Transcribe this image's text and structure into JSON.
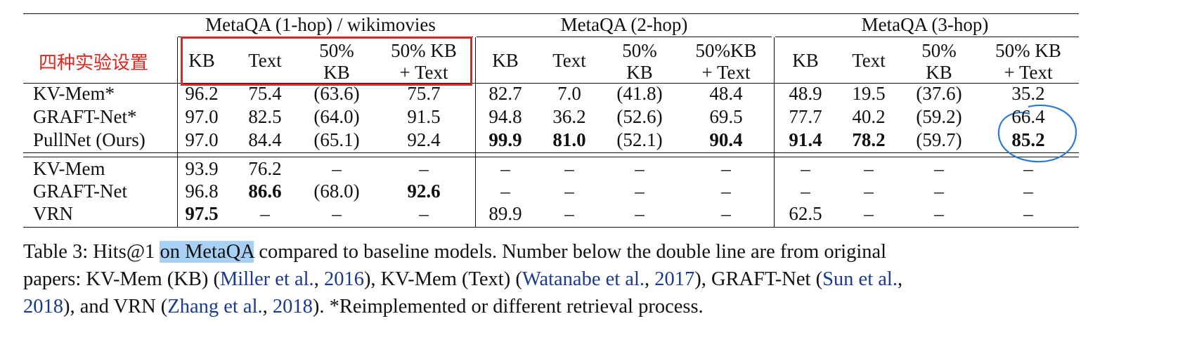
{
  "annotation_note": "四种实验设置",
  "groups": [
    "MetaQA (1-hop) / wikimovies",
    "MetaQA (2-hop)",
    "MetaQA (3-hop)"
  ],
  "columns": [
    [
      "KB",
      "Text",
      "50% KB",
      "50% KB + Text"
    ],
    [
      "KB",
      "Text",
      "50% KB",
      "50%KB + Text"
    ],
    [
      "KB",
      "Text",
      "50% KB",
      "50% KB + Text"
    ]
  ],
  "rows_top": [
    {
      "label": "KV-Mem*",
      "cells": [
        "96.2",
        "75.4",
        "(63.6)",
        "75.7",
        "82.7",
        "7.0",
        "(41.8)",
        "48.4",
        "48.9",
        "19.5",
        "(37.6)",
        "35.2"
      ],
      "bold": []
    },
    {
      "label": "GRAFT-Net*",
      "cells": [
        "97.0",
        "82.5",
        "(64.0)",
        "91.5",
        "94.8",
        "36.2",
        "(52.6)",
        "69.5",
        "77.7",
        "40.2",
        "(59.2)",
        "66.4"
      ],
      "bold": []
    },
    {
      "label": "PullNet (Ours)",
      "cells": [
        "97.0",
        "84.4",
        "(65.1)",
        "92.4",
        "99.9",
        "81.0",
        "(52.1)",
        "90.4",
        "91.4",
        "78.2",
        "(59.7)",
        "85.2"
      ],
      "bold": [
        4,
        5,
        7,
        8,
        9,
        11
      ]
    }
  ],
  "rows_bottom": [
    {
      "label": "KV-Mem",
      "cells": [
        "93.9",
        "76.2",
        "–",
        "–",
        "–",
        "–",
        "–",
        "–",
        "–",
        "–",
        "–",
        "–"
      ],
      "bold": []
    },
    {
      "label": "GRAFT-Net",
      "cells": [
        "96.8",
        "86.6",
        "(68.0)",
        "92.6",
        "–",
        "–",
        "–",
        "–",
        "–",
        "–",
        "–",
        "–"
      ],
      "bold": [
        1,
        3
      ]
    },
    {
      "label": "VRN",
      "cells": [
        "97.5",
        "–",
        "–",
        "–",
        "89.9",
        "–",
        "–",
        "–",
        "62.5",
        "–",
        "–",
        "–"
      ],
      "bold": [
        0
      ]
    }
  ],
  "caption": {
    "l1_a": "Table 3:  Hits@1 ",
    "l1_hl": "on MetaQA",
    "l1_b": " compared to baseline models.  Number below the double line are from original",
    "l2_a": "papers: KV-Mem (KB) (",
    "l2_c1": "Miller et al.",
    "l2_s1": ", ",
    "l2_y1": "2016",
    "l2_b": "), KV-Mem (Text) (",
    "l2_c2": "Watanabe et al.",
    "l2_s2": ", ",
    "l2_y2": "2017",
    "l2_c": "), GRAFT-Net (",
    "l2_c3": "Sun et al.",
    "l2_s3": ",",
    "l3_y3": "2018",
    "l3_a": "), and VRN (",
    "l3_c4": "Zhang et al.",
    "l3_s4": ", ",
    "l3_y4": "2018",
    "l3_b": ").  *Reimplemented or different retrieval process."
  }
}
